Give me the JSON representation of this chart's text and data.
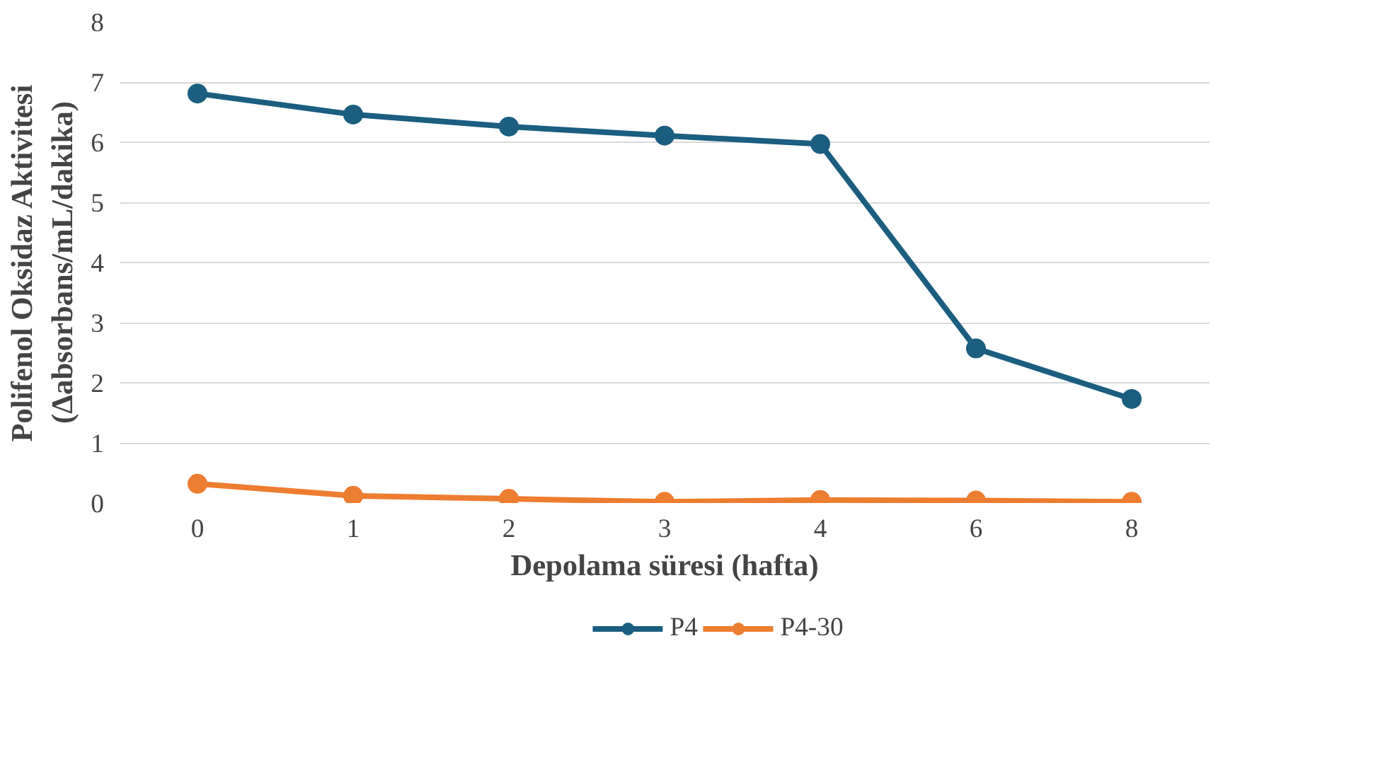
{
  "chart_data": {
    "type": "line",
    "xlabel": "Depolama süresi (hafta)",
    "ylabel": "Polifenol Oksidaz Aktivitesi\n(Δabsorbans/mL/dakika)",
    "categories": [
      "0",
      "1",
      "2",
      "3",
      "4",
      "6",
      "8"
    ],
    "series": [
      {
        "name": "P4",
        "color": "#1b5e80",
        "values": [
          6.81,
          6.46,
          6.26,
          6.11,
          5.97,
          2.57,
          1.73
        ]
      },
      {
        "name": "P4-30",
        "color": "#ed7d31",
        "values": [
          0.32,
          0.12,
          0.07,
          0.02,
          0.05,
          0.04,
          0.02
        ]
      }
    ],
    "ylim": [
      0,
      8
    ],
    "yticks": [
      0,
      1,
      2,
      3,
      4,
      5,
      6,
      7,
      8
    ],
    "grid": "y",
    "legend": "bottom",
    "marker": "circle",
    "line_style": "solid"
  }
}
